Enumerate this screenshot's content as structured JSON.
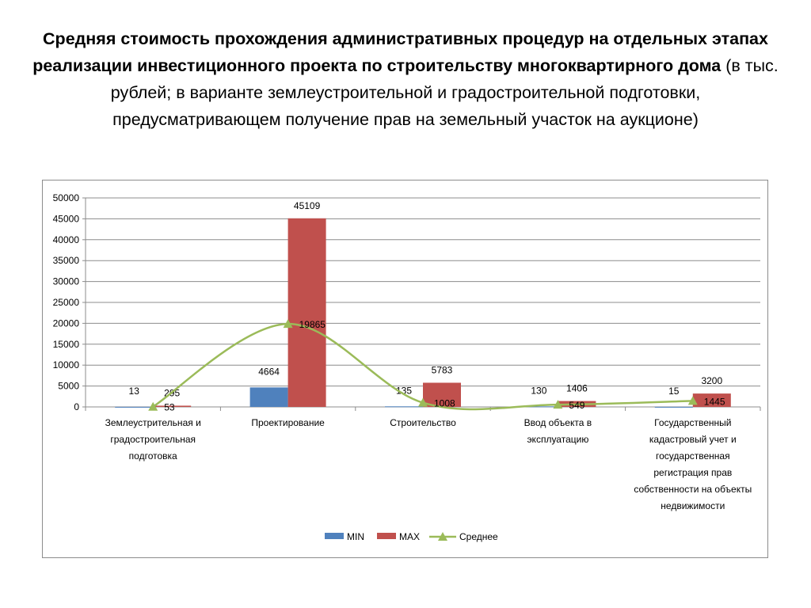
{
  "title": {
    "bold": "Средняя стоимость прохождения административных процедур на отдельных этапах реализации инвестиционного проекта по строительству многоквартирного дома",
    "normal": "(в тыс. рублей; в варианте землеустроительной и градостроительной подготовки, предусматривающем получение прав на земельный участок на аукционе)"
  },
  "chart_data": {
    "type": "bar",
    "categories": [
      "Землеустрительная и градостроительная подготовка",
      "Проектирование",
      "Строительство",
      "Ввод объекта в эксплуатацию",
      "Государственный кадастровый учет и государственная регистрация прав собственности на объекты недвижимости"
    ],
    "category_lines": [
      [
        "Землеустрительная и",
        "градостроительная",
        "подготовка"
      ],
      [
        "Проектирование"
      ],
      [
        "Строительство"
      ],
      [
        "Ввод объекта в",
        "эксплуатацию"
      ],
      [
        "Государственный",
        "кадастровый учет и",
        "государственная",
        "регистрация прав",
        "собственности на объекты",
        "недвижимости"
      ]
    ],
    "series": [
      {
        "name": "MIN",
        "type": "bar",
        "color": "#4f81bd",
        "values": [
          13,
          4664,
          135,
          130,
          15
        ]
      },
      {
        "name": "MAX",
        "type": "bar",
        "color": "#c0504d",
        "values": [
          295,
          45109,
          5783,
          1406,
          3200
        ]
      },
      {
        "name": "Среднее",
        "type": "line",
        "color": "#9bbb59",
        "values": [
          53,
          19865,
          1008,
          549,
          1445
        ]
      }
    ],
    "ylim": [
      0,
      50000
    ],
    "yticks": [
      0,
      5000,
      10000,
      15000,
      20000,
      25000,
      30000,
      35000,
      40000,
      45000,
      50000
    ],
    "grid": true,
    "legend": "bottom"
  }
}
